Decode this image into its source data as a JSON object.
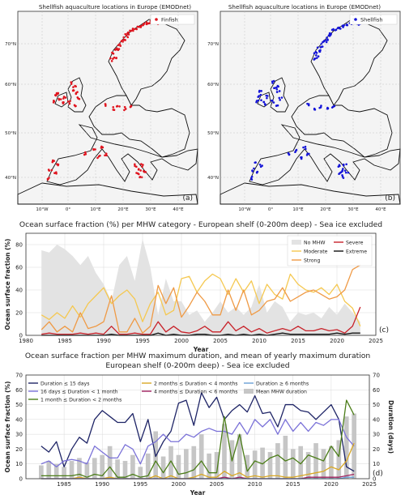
{
  "maps": [
    {
      "title": "Shellfish aquaculture locations in Europe (EMODnet)",
      "legend": "Finfish",
      "panel": "(a)",
      "color": "#e0141e",
      "lat_ticks": [
        "70°N",
        "60°N",
        "50°N",
        "40°N"
      ],
      "lon_ticks": [
        "10°W",
        "0°",
        "10°E",
        "20°E",
        "30°E",
        "40°E"
      ]
    },
    {
      "title": "Shellfish aquaculture locations in Europe (EMODnet)",
      "legend": "Shellfish",
      "panel": "(b)",
      "color": "#1414d8",
      "lat_ticks": [
        "70°N",
        "60°N",
        "50°N",
        "40°N"
      ],
      "lon_ticks": [
        "10°W",
        "0°",
        "10°E",
        "20°E",
        "30°E",
        "40°E"
      ]
    }
  ],
  "chart_data": [
    {
      "type": "line",
      "title": "Ocean surface fraction (%) per MHW category - European shelf (0-200m deep) - Sea ice excluded",
      "xlabel": "Year",
      "ylabel": "Ocean surface fraction (%)",
      "xlim": [
        1980,
        2025
      ],
      "ylim": [
        0,
        90
      ],
      "x_ticks": [
        1980,
        1985,
        1990,
        1995,
        2000,
        2005,
        2010,
        2015,
        2020,
        2025
      ],
      "y_ticks": [
        0,
        20,
        40,
        60,
        80
      ],
      "panel": "(c)",
      "legend_position": "top-right",
      "x": [
        1982,
        1983,
        1984,
        1985,
        1986,
        1987,
        1988,
        1989,
        1990,
        1991,
        1992,
        1993,
        1994,
        1995,
        1996,
        1997,
        1998,
        1999,
        2000,
        2001,
        2002,
        2003,
        2004,
        2005,
        2006,
        2007,
        2008,
        2009,
        2010,
        2011,
        2012,
        2013,
        2014,
        2015,
        2016,
        2017,
        2018,
        2019,
        2020,
        2021,
        2022,
        2023
      ],
      "series": [
        {
          "name": "No MHW",
          "style": "area",
          "color": "#e3e3e3",
          "values": [
            75,
            73,
            80,
            76,
            70,
            62,
            70,
            55,
            45,
            30,
            62,
            70,
            48,
            85,
            60,
            18,
            50,
            30,
            30,
            18,
            22,
            12,
            20,
            30,
            20,
            25,
            18,
            25,
            45,
            20,
            30,
            25,
            12,
            20,
            18,
            20,
            15,
            25,
            18,
            28,
            20,
            12
          ]
        },
        {
          "name": "Moderate",
          "color": "#f5c850",
          "values": [
            18,
            14,
            20,
            15,
            26,
            16,
            28,
            35,
            42,
            28,
            35,
            40,
            32,
            12,
            28,
            38,
            18,
            22,
            50,
            52,
            38,
            48,
            54,
            50,
            36,
            50,
            38,
            48,
            28,
            45,
            36,
            32,
            54,
            45,
            40,
            38,
            42,
            36,
            45,
            30,
            24,
            8
          ]
        },
        {
          "name": "Strong",
          "color": "#ef9a45",
          "values": [
            5,
            12,
            3,
            8,
            3,
            20,
            6,
            8,
            12,
            35,
            3,
            3,
            15,
            2,
            8,
            44,
            28,
            42,
            16,
            26,
            38,
            30,
            18,
            18,
            40,
            22,
            40,
            18,
            22,
            30,
            32,
            42,
            30,
            34,
            38,
            40,
            36,
            32,
            34,
            40,
            58,
            62
          ]
        },
        {
          "name": "Severe",
          "color": "#c8222a",
          "values": [
            1,
            2,
            1,
            1,
            1,
            2,
            1,
            2,
            1,
            8,
            1,
            1,
            2,
            1,
            1,
            12,
            3,
            8,
            3,
            2,
            4,
            8,
            3,
            3,
            12,
            4,
            8,
            3,
            6,
            2,
            4,
            6,
            4,
            8,
            4,
            4,
            6,
            4,
            5,
            2,
            8,
            25
          ]
        },
        {
          "name": "Extreme",
          "color": "#111111",
          "values": [
            0,
            0,
            0,
            0,
            0,
            0,
            0,
            0,
            0,
            1,
            0,
            0,
            0,
            0,
            0,
            2,
            0,
            1,
            0,
            0,
            1,
            1,
            0,
            0,
            1,
            0,
            1,
            0,
            1,
            0,
            1,
            2,
            1,
            1,
            1,
            1,
            1,
            1,
            2,
            1,
            2,
            2
          ]
        }
      ]
    },
    {
      "type": "line",
      "title": "Ocean surface fraction per MHW maximum duration, and mean of yearly maximum duration",
      "subtitle": "European shelf (0-200m deep) - Sea ice excluded",
      "xlabel": "Year",
      "ylabel": "Ocean surface fraction (%)",
      "ylabel_right": "Duration (days)",
      "xlim": [
        1980,
        2025
      ],
      "ylim": [
        0,
        70
      ],
      "ylim_right": [
        0,
        70
      ],
      "x_ticks": [
        1985,
        1990,
        1995,
        2000,
        2005,
        2010,
        2015,
        2020,
        2025
      ],
      "y_ticks": [
        0,
        10,
        20,
        30,
        40,
        50,
        60,
        70
      ],
      "panel": "(d)",
      "legend_position": "top",
      "x": [
        1982,
        1983,
        1984,
        1985,
        1986,
        1987,
        1988,
        1989,
        1990,
        1991,
        1992,
        1993,
        1994,
        1995,
        1996,
        1997,
        1998,
        1999,
        2000,
        2001,
        2002,
        2003,
        2004,
        2005,
        2006,
        2007,
        2008,
        2009,
        2010,
        2011,
        2012,
        2013,
        2014,
        2015,
        2016,
        2017,
        2018,
        2019,
        2020,
        2021,
        2022,
        2023
      ],
      "series": [
        {
          "name": "Mean MHW duration",
          "style": "bar",
          "color": "#c6c6c6",
          "values": [
            9,
            12,
            10,
            8,
            12,
            14,
            11,
            14,
            16,
            22,
            13,
            12,
            16,
            8,
            17,
            32,
            15,
            22,
            16,
            20,
            22,
            30,
            17,
            18,
            37,
            26,
            30,
            16,
            19,
            21,
            18,
            24,
            29,
            20,
            22,
            18,
            24,
            20,
            22,
            26,
            42,
            44
          ]
        },
        {
          "name": "Duration ≤ 15 days",
          "color": "#1e2466",
          "values": [
            22,
            18,
            25,
            8,
            20,
            28,
            24,
            40,
            46,
            42,
            38,
            38,
            44,
            25,
            40,
            15,
            25,
            32,
            51,
            53,
            36,
            58,
            48,
            55,
            40,
            46,
            50,
            45,
            56,
            44,
            45,
            35,
            50,
            50,
            46,
            45,
            40,
            45,
            50,
            40,
            8,
            5
          ]
        },
        {
          "name": "16 days ≤ Duration < 1 month",
          "color": "#7b72d8",
          "values": [
            10,
            12,
            8,
            12,
            13,
            12,
            10,
            22,
            18,
            14,
            14,
            23,
            20,
            10,
            22,
            25,
            30,
            25,
            25,
            30,
            28,
            32,
            34,
            32,
            32,
            30,
            38,
            30,
            40,
            35,
            40,
            30,
            40,
            32,
            38,
            32,
            38,
            36,
            40,
            40,
            28,
            22
          ]
        },
        {
          "name": "1 month ≤ Duration < 2 months",
          "color": "#4b7d18",
          "values": [
            2,
            2,
            2,
            2,
            2,
            3,
            1,
            3,
            2,
            8,
            1,
            1,
            3,
            1,
            2,
            12,
            4,
            12,
            3,
            4,
            6,
            12,
            4,
            4,
            42,
            12,
            30,
            5,
            12,
            10,
            14,
            16,
            12,
            14,
            10,
            16,
            14,
            12,
            22,
            15,
            53,
            43
          ]
        },
        {
          "name": "2 months ≤ Duration < 4 months",
          "color": "#d9a825",
          "values": [
            0,
            0,
            0,
            0,
            0,
            1,
            0,
            0,
            0,
            1,
            0,
            0,
            0,
            0,
            0,
            2,
            0,
            2,
            0,
            0,
            1,
            3,
            1,
            1,
            5,
            2,
            4,
            1,
            2,
            1,
            2,
            2,
            1,
            1,
            2,
            3,
            4,
            5,
            8,
            6,
            12,
            24
          ]
        },
        {
          "name": "4 months ≤ Duration < 6 months",
          "color": "#a0205e",
          "values": [
            0,
            0,
            0,
            0,
            0,
            0,
            0,
            0,
            0,
            0,
            0,
            0,
            0,
            0,
            0,
            0,
            0,
            0,
            0,
            0,
            0,
            0,
            0,
            0,
            1,
            0,
            1,
            0,
            0,
            0,
            0,
            0,
            0,
            0,
            0,
            1,
            1,
            1,
            1,
            1,
            2,
            3
          ]
        },
        {
          "name": "Duration ≥ 6 months",
          "color": "#6aa0d6",
          "values": [
            0,
            0,
            0,
            0,
            0,
            0,
            0,
            0,
            0,
            0,
            0,
            0,
            0,
            0,
            0,
            0,
            0,
            0,
            0,
            0,
            0,
            0,
            0,
            0,
            0,
            0,
            0,
            0,
            0,
            0,
            0,
            0,
            0,
            0,
            0,
            0,
            0,
            0,
            0,
            0,
            1,
            1
          ]
        }
      ]
    }
  ]
}
